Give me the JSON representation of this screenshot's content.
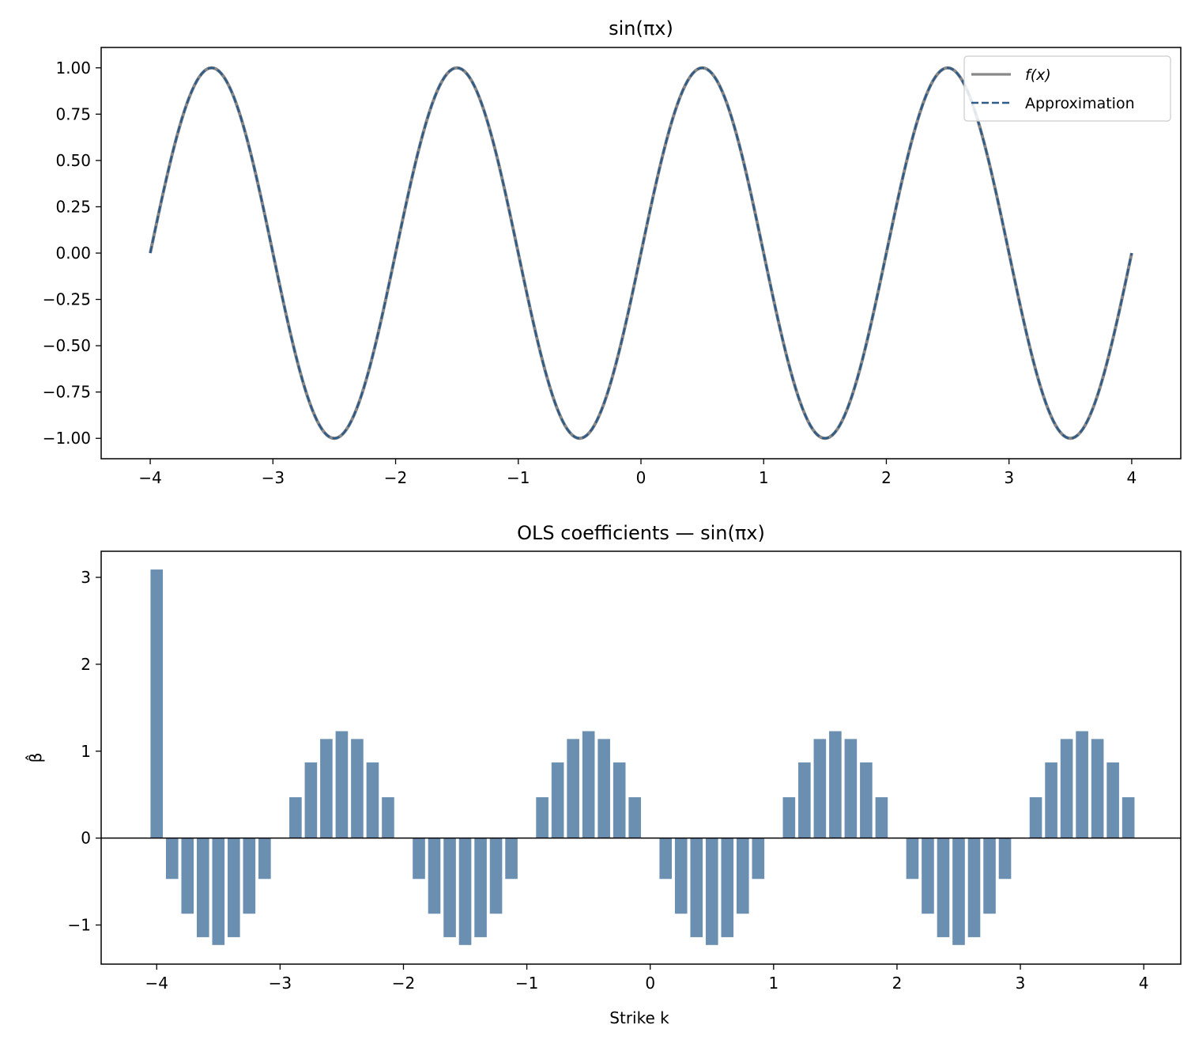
{
  "chart_data": [
    {
      "type": "line",
      "title": "sin(πx)",
      "xlabel": "",
      "ylabel": "",
      "xlim": [
        -4.4,
        4.4
      ],
      "ylim": [
        -1.11,
        1.11
      ],
      "x_ticks": [
        -4,
        -3,
        -2,
        -1,
        0,
        1,
        2,
        3,
        4
      ],
      "x_tick_labels": [
        "−4",
        "−3",
        "−2",
        "−1",
        "0",
        "1",
        "2",
        "3",
        "4"
      ],
      "y_ticks": [
        1.0,
        0.75,
        0.5,
        0.25,
        0.0,
        -0.25,
        -0.5,
        -0.75,
        -1.0
      ],
      "y_tick_labels": [
        "1.00",
        "0.75",
        "0.50",
        "0.25",
        "0.00",
        "−0.25",
        "−0.50",
        "−0.75",
        "−1.00"
      ],
      "grid": false,
      "legend_position": "top-right",
      "x_range": [
        -4,
        4
      ],
      "series": [
        {
          "name": "f(x)",
          "function": "sin(pi*x)",
          "color": "#888888",
          "style": "solid"
        },
        {
          "name": "Approximation",
          "function": "sin(pi*x)",
          "color": "#2f5b87",
          "style": "dashed"
        }
      ]
    },
    {
      "type": "bar",
      "title": "OLS coefficients — sin(πx)",
      "xlabel": "Strike k",
      "ylabel": "β̂",
      "xlim": [
        -4.45,
        4.3
      ],
      "ylim": [
        -1.45,
        3.3
      ],
      "x_ticks": [
        -4,
        -3,
        -2,
        -1,
        0,
        1,
        2,
        3,
        4
      ],
      "x_tick_labels": [
        "−4",
        "−3",
        "−2",
        "−1",
        "0",
        "1",
        "2",
        "3",
        "4"
      ],
      "y_ticks": [
        3,
        2,
        1,
        0,
        -1
      ],
      "y_tick_labels": [
        "3",
        "2",
        "1",
        "0",
        "−1"
      ],
      "grid": false,
      "bar_color": "#6b8fb0",
      "bar_width": 0.1,
      "baseline": 0,
      "strikes": [
        -4.0,
        -3.875,
        -3.75,
        -3.625,
        -3.5,
        -3.375,
        -3.25,
        -3.125,
        -2.875,
        -2.75,
        -2.625,
        -2.5,
        -2.375,
        -2.25,
        -2.125,
        -1.875,
        -1.75,
        -1.625,
        -1.5,
        -1.375,
        -1.25,
        -1.125,
        -0.875,
        -0.75,
        -0.625,
        -0.5,
        -0.375,
        -0.25,
        -0.125,
        0.125,
        0.25,
        0.375,
        0.5,
        0.625,
        0.75,
        0.875,
        1.125,
        1.25,
        1.375,
        1.5,
        1.625,
        1.75,
        1.875,
        2.125,
        2.25,
        2.375,
        2.5,
        2.625,
        2.75,
        2.875,
        3.125,
        3.25,
        3.375,
        3.5,
        3.625,
        3.75,
        3.875
      ],
      "values": [
        3.09,
        -0.47,
        -0.87,
        -1.14,
        -1.23,
        -1.14,
        -0.87,
        -0.47,
        0.47,
        0.87,
        1.14,
        1.23,
        1.14,
        0.87,
        0.47,
        -0.47,
        -0.87,
        -1.14,
        -1.23,
        -1.14,
        -0.87,
        -0.47,
        0.47,
        0.87,
        1.14,
        1.23,
        1.14,
        0.87,
        0.47,
        -0.47,
        -0.87,
        -1.14,
        -1.23,
        -1.14,
        -0.87,
        -0.47,
        0.47,
        0.87,
        1.14,
        1.23,
        1.14,
        0.87,
        0.47,
        -0.47,
        -0.87,
        -1.14,
        -1.23,
        -1.14,
        -0.87,
        -0.47,
        0.47,
        0.87,
        1.14,
        1.23,
        1.14,
        0.87,
        0.47
      ]
    }
  ]
}
